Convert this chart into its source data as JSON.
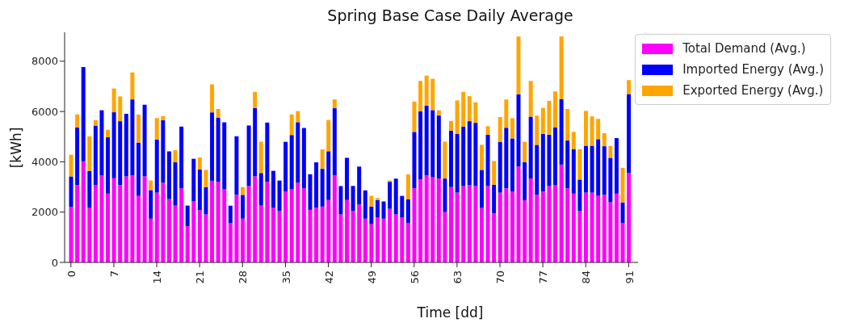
{
  "chart_data": {
    "type": "bar",
    "title": "Spring Base Case Daily Average",
    "xlabel": "Time [dd]",
    "ylabel": "[kWh]",
    "categories": [
      "0",
      null,
      null,
      null,
      null,
      null,
      null,
      "7",
      null,
      null,
      null,
      null,
      null,
      null,
      "14",
      null,
      null,
      null,
      null,
      null,
      null,
      "21",
      null,
      null,
      null,
      null,
      null,
      null,
      "28",
      null,
      null,
      null,
      null,
      null,
      null,
      "35",
      null,
      null,
      null,
      null,
      null,
      null,
      "42",
      null,
      null,
      null,
      null,
      null,
      null,
      "49",
      null,
      null,
      null,
      null,
      null,
      null,
      "56",
      null,
      null,
      null,
      null,
      null,
      null,
      "63",
      null,
      null,
      null,
      null,
      null,
      null,
      "70",
      null,
      null,
      null,
      null,
      null,
      null,
      "77",
      null,
      null,
      null,
      null,
      null,
      null,
      "84",
      null,
      null,
      null,
      null,
      null,
      null,
      "91"
    ],
    "stacked": true,
    "ylim": [
      0,
      9150
    ],
    "yticks": [
      0,
      2000,
      4000,
      6000,
      8000
    ],
    "legend": "top right",
    "series": [
      {
        "name": "Total Demand (Avg.)",
        "color": "#ff00ff",
        "values": [
          2210,
          3075,
          4020,
          2180,
          3075,
          3460,
          2735,
          3345,
          3075,
          3420,
          3460,
          2645,
          3420,
          1740,
          2775,
          3165,
          2515,
          2260,
          2945,
          1445,
          2440,
          2080,
          1910,
          3245,
          3205,
          2905,
          1560,
          2685,
          1740,
          3035,
          3420,
          2260,
          3205,
          2180,
          2040,
          2815,
          2905,
          3165,
          2945,
          2090,
          2180,
          2220,
          2480,
          3460,
          1910,
          2480,
          2040,
          2300,
          1740,
          1520,
          1780,
          1740,
          2130,
          1910,
          1780,
          1560,
          2945,
          3295,
          3460,
          3385,
          3335,
          2000,
          2995,
          2775,
          3035,
          3075,
          3035,
          2170,
          3035,
          1960,
          2775,
          2945,
          2815,
          3810,
          2470,
          3335,
          2685,
          2815,
          3035,
          3075,
          3890,
          2945,
          2735,
          2040,
          2775,
          2775,
          2645,
          2685,
          2390,
          2735,
          1560,
          3550
        ]
      },
      {
        "name": "Imported Energy (Avg.)",
        "color": "#0000ff",
        "values": [
          1210,
          2290,
          3750,
          1460,
          2365,
          2590,
          2240,
          2625,
          2540,
          2490,
          3020,
          2120,
          2850,
          1135,
          2110,
          2490,
          1900,
          1720,
          2455,
          815,
          1680,
          1610,
          1085,
          2720,
          2545,
          2665,
          695,
          2330,
          945,
          2410,
          2715,
          1295,
          2355,
          1460,
          1215,
          1980,
          2160,
          2410,
          2400,
          1415,
          1800,
          1500,
          1940,
          2670,
          1125,
          1680,
          1000,
          1510,
          1125,
          700,
          700,
          685,
          1075,
          1420,
          865,
          955,
          2245,
          2715,
          2770,
          2670,
          2505,
          1335,
          2240,
          2330,
          2360,
          2540,
          2515,
          1510,
          2040,
          1125,
          2010,
          2410,
          2115,
          2875,
          1510,
          2460,
          1990,
          2290,
          2045,
          2300,
          2595,
          1900,
          1760,
          1255,
          1865,
          1865,
          2255,
          1935,
          1770,
          2210,
          825,
          3145
        ]
      },
      {
        "name": "Exported Energy (Avg.)",
        "color": "#ffa500",
        "values": [
          860,
          520,
          0,
          1370,
          220,
          0,
          300,
          945,
          985,
          0,
          1075,
          1115,
          0,
          380,
          855,
          160,
          0,
          480,
          0,
          0,
          0,
          480,
          685,
          1115,
          350,
          0,
          0,
          0,
          310,
          0,
          645,
          1245,
          0,
          0,
          0,
          0,
          815,
          440,
          0,
          0,
          0,
          775,
          1245,
          350,
          0,
          0,
          0,
          0,
          0,
          430,
          80,
          0,
          50,
          0,
          0,
          985,
          1205,
          1205,
          1195,
          1245,
          210,
          1465,
          390,
          1335,
          1385,
          995,
          815,
          995,
          340,
          945,
          995,
          1125,
          805,
          2295,
          815,
          1420,
          1165,
          1035,
          1345,
          1425,
          2500,
          1255,
          695,
          1205,
          1385,
          1165,
          805,
          515,
          470,
          0,
          1375,
          555
        ]
      }
    ]
  }
}
